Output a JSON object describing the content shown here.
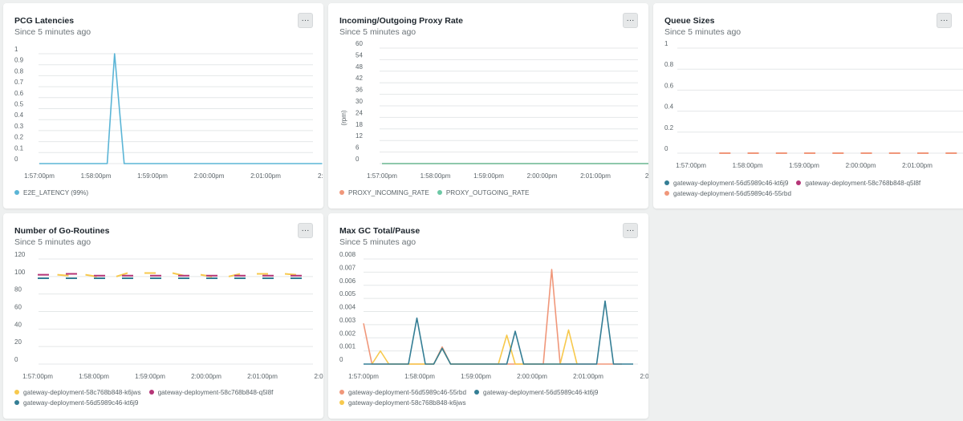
{
  "colors": {
    "e2e_latency": "#5bb5d6",
    "proxy_incoming": "#f0977a",
    "proxy_outgoing": "#6cc8a5",
    "kt6j9": "#347e95",
    "q5l8f": "#b53577",
    "55rbd": "#f0977a",
    "k6jws": "#f7c94d",
    "grid": "#e4e7e8",
    "axis_text": "#5b6469"
  },
  "panels": {
    "pcg": {
      "title": "PCG Latencies",
      "subtitle": "Since 5 minutes ago",
      "menu_label": "···",
      "legend": [
        {
          "label": "E2E_LATENCY (99%)",
          "color": "#5bb5d6"
        }
      ]
    },
    "proxy": {
      "title": "Incoming/Outgoing Proxy Rate",
      "subtitle": "Since 5 minutes ago",
      "menu_label": "···",
      "legend": [
        {
          "label": "PROXY_INCOMING_RATE",
          "color": "#f0977a"
        },
        {
          "label": "PROXY_OUTGOING_RATE",
          "color": "#6cc8a5"
        }
      ]
    },
    "queue": {
      "title": "Queue Sizes",
      "subtitle": "Since 5 minutes ago",
      "menu_label": "···",
      "legend": [
        {
          "label": "gateway-deployment-56d5989c46-kt6j9",
          "color": "#347e95"
        },
        {
          "label": "gateway-deployment-58c768b848-q5l8f",
          "color": "#b53577"
        },
        {
          "label": "gateway-deployment-56d5989c46-55rbd",
          "color": "#f0977a"
        }
      ]
    },
    "goroutines": {
      "title": "Number of Go-Routines",
      "subtitle": "Since 5 minutes ago",
      "menu_label": "···",
      "legend": [
        {
          "label": "gateway-deployment-58c768b848-k6jws",
          "color": "#f7c94d"
        },
        {
          "label": "gateway-deployment-58c768b848-q5l8f",
          "color": "#b53577"
        },
        {
          "label": "gateway-deployment-56d5989c46-kt6j9",
          "color": "#347e95"
        }
      ]
    },
    "gc": {
      "title": "Max GC Total/Pause",
      "subtitle": "Since 5 minutes ago",
      "menu_label": "···",
      "legend": [
        {
          "label": "gateway-deployment-56d5989c46-55rbd",
          "color": "#f0977a"
        },
        {
          "label": "gateway-deployment-56d5989c46-kt6j9",
          "color": "#347e95"
        },
        {
          "label": "gateway-deployment-58c768b848-k6jws",
          "color": "#f7c94d"
        }
      ]
    }
  },
  "chart_data": [
    {
      "id": "pcg",
      "type": "line",
      "title": "PCG Latencies",
      "xlabel": "",
      "ylabel": "",
      "ylim": [
        0,
        1
      ],
      "y_ticks": [
        "0",
        "0.1",
        "0.2",
        "0.3",
        "0.4",
        "0.5",
        "0.6",
        "0.7",
        "0.8",
        "0.9",
        "1"
      ],
      "x_ticks": [
        "1:57:00pm",
        "1:58:00pm",
        "1:59:00pm",
        "2:00:00pm",
        "2:01:00pm",
        "2:0"
      ],
      "x": [
        0,
        1.2,
        1.33,
        1.5,
        5
      ],
      "series": [
        {
          "name": "E2E_LATENCY (99%)",
          "color": "#5bb5d6",
          "values": [
            0,
            0,
            1,
            0,
            0
          ]
        }
      ],
      "grid": true,
      "legend": "bottom"
    },
    {
      "id": "proxy",
      "type": "line",
      "title": "Incoming/Outgoing Proxy Rate",
      "xlabel": "",
      "ylabel": "(rpm)",
      "ylim": [
        0,
        60
      ],
      "y_ticks": [
        "0",
        "6",
        "12",
        "18",
        "24",
        "30",
        "36",
        "42",
        "48",
        "54",
        "60"
      ],
      "x_ticks": [
        "1:57:00pm",
        "1:58:00pm",
        "1:59:00pm",
        "2:00:00pm",
        "2:01:00pm",
        "2:("
      ],
      "x": [
        0,
        5
      ],
      "series": [
        {
          "name": "PROXY_INCOMING_RATE",
          "color": "#f0977a",
          "values": [
            0,
            0
          ]
        },
        {
          "name": "PROXY_OUTGOING_RATE",
          "color": "#6cc8a5",
          "values": [
            0,
            0
          ]
        }
      ],
      "grid": true,
      "legend": "bottom"
    },
    {
      "id": "queue",
      "type": "line",
      "title": "Queue Sizes",
      "xlabel": "",
      "ylabel": "",
      "ylim": [
        0,
        1
      ],
      "y_ticks": [
        "0",
        "0.2",
        "0.4",
        "0.6",
        "0.8",
        "1"
      ],
      "x_ticks": [
        "1:57:00pm",
        "1:58:00pm",
        "1:59:00pm",
        "2:00:00pm",
        "2:01:00pm",
        "2:("
      ],
      "dash_x": [
        0.6,
        1.1,
        1.6,
        2.1,
        2.6,
        3.1,
        3.6,
        4.1,
        4.6,
        5.1
      ],
      "series": [
        {
          "name": "gateway-deployment-56d5989c46-55rbd",
          "color": "#f0977a",
          "values": [
            0,
            0,
            0,
            0,
            0,
            0,
            0,
            0,
            0,
            0
          ]
        }
      ],
      "grid": true,
      "legend": "bottom"
    },
    {
      "id": "goroutines",
      "type": "line",
      "title": "Number of Go-Routines",
      "xlabel": "",
      "ylabel": "",
      "ylim": [
        0,
        120
      ],
      "y_ticks": [
        "0",
        "20",
        "40",
        "60",
        "80",
        "100",
        "120"
      ],
      "x_ticks": [
        "1:57:00pm",
        "1:58:00pm",
        "1:59:00pm",
        "2:00:00pm",
        "2:01:00pm",
        "2:0"
      ],
      "segments": [
        {
          "name": "gateway-deployment-58c768b848-k6jws",
          "color": "#f7c94d",
          "pieces": [
            [
              [
                0.35,
                102
              ],
              [
                0.55,
                101
              ]
            ],
            [
              [
                0.85,
                102
              ],
              [
                1.05,
                100
              ]
            ],
            [
              [
                1.4,
                100
              ],
              [
                1.6,
                104
              ]
            ],
            [
              [
                1.9,
                104
              ],
              [
                2.1,
                104
              ]
            ],
            [
              [
                2.4,
                104
              ],
              [
                2.6,
                101
              ]
            ],
            [
              [
                2.9,
                102
              ],
              [
                3.1,
                100
              ]
            ],
            [
              [
                3.4,
                100
              ],
              [
                3.6,
                103
              ]
            ],
            [
              [
                3.9,
                103
              ],
              [
                4.1,
                103
              ]
            ],
            [
              [
                4.4,
                103
              ],
              [
                4.6,
                102
              ]
            ]
          ]
        },
        {
          "name": "gateway-deployment-58c768b848-q5l8f",
          "color": "#b53577",
          "pieces": [
            [
              [
                0,
                102
              ],
              [
                0.2,
                102
              ]
            ],
            [
              [
                0.5,
                103
              ],
              [
                0.7,
                103
              ]
            ],
            [
              [
                1.0,
                101
              ],
              [
                1.2,
                101
              ]
            ],
            [
              [
                1.5,
                101
              ],
              [
                1.7,
                101
              ]
            ],
            [
              [
                2.0,
                101
              ],
              [
                2.2,
                101
              ]
            ],
            [
              [
                2.5,
                101
              ],
              [
                2.7,
                101
              ]
            ],
            [
              [
                3.0,
                101
              ],
              [
                3.2,
                101
              ]
            ],
            [
              [
                3.5,
                101
              ],
              [
                3.7,
                101
              ]
            ],
            [
              [
                4.0,
                101
              ],
              [
                4.2,
                101
              ]
            ],
            [
              [
                4.5,
                101
              ],
              [
                4.7,
                101
              ]
            ]
          ]
        },
        {
          "name": "gateway-deployment-56d5989c46-kt6j9",
          "color": "#347e95",
          "pieces": [
            [
              [
                0,
                98
              ],
              [
                0.2,
                98
              ]
            ],
            [
              [
                0.5,
                98
              ],
              [
                0.7,
                98
              ]
            ],
            [
              [
                1.0,
                98
              ],
              [
                1.2,
                98
              ]
            ],
            [
              [
                1.5,
                98
              ],
              [
                1.7,
                98
              ]
            ],
            [
              [
                2.0,
                98
              ],
              [
                2.2,
                98
              ]
            ],
            [
              [
                2.5,
                98
              ],
              [
                2.7,
                98
              ]
            ],
            [
              [
                3.0,
                98
              ],
              [
                3.2,
                98
              ]
            ],
            [
              [
                3.5,
                98
              ],
              [
                3.7,
                98
              ]
            ],
            [
              [
                4.0,
                98
              ],
              [
                4.2,
                98
              ]
            ],
            [
              [
                4.5,
                98
              ],
              [
                4.7,
                98
              ]
            ]
          ]
        }
      ],
      "grid": true,
      "legend": "bottom"
    },
    {
      "id": "gc",
      "type": "line",
      "title": "Max GC Total/Pause",
      "xlabel": "",
      "ylabel": "",
      "ylim": [
        0,
        0.008
      ],
      "y_ticks": [
        "0",
        "0.001",
        "0.002",
        "0.003",
        "0.004",
        "0.005",
        "0.006",
        "0.007",
        "0.008"
      ],
      "x_ticks": [
        "1:57:00pm",
        "1:58:00pm",
        "1:59:00pm",
        "2:00:00pm",
        "2:01:00pm",
        "2:0"
      ],
      "series": [
        {
          "name": "gateway-deployment-56d5989c46-55rbd",
          "color": "#f0977a",
          "x": [
            0,
            0.15,
            1.25,
            1.4,
            1.55,
            2.9,
            3.05,
            3.2,
            3.35,
            3.5,
            4.45,
            4.6
          ],
          "values": [
            0.0031,
            0,
            0,
            0.0013,
            0,
            0,
            0,
            0,
            0.0072,
            0,
            0,
            0
          ]
        },
        {
          "name": "gateway-deployment-58c768b848-k6jws",
          "color": "#f7c94d",
          "x": [
            0.15,
            0.3,
            0.45,
            1.25,
            1.4,
            1.55,
            2.4,
            2.55,
            2.7,
            3.5,
            3.65,
            3.8
          ],
          "values": [
            0,
            0.001,
            0,
            0,
            0.0012,
            0,
            0,
            0.0022,
            0,
            0,
            0.0026,
            0
          ]
        },
        {
          "name": "gateway-deployment-56d5989c46-kt6j9",
          "color": "#347e95",
          "x": [
            0,
            0.8,
            0.95,
            1.1,
            1.25,
            1.4,
            1.55,
            2.55,
            2.7,
            2.85,
            4.15,
            4.3,
            4.45,
            4.8
          ],
          "values": [
            0,
            0,
            0.0035,
            0,
            0,
            0.0012,
            0,
            0,
            0.0025,
            0,
            0,
            0.0048,
            0,
            0
          ]
        }
      ],
      "grid": true,
      "legend": "bottom"
    }
  ]
}
